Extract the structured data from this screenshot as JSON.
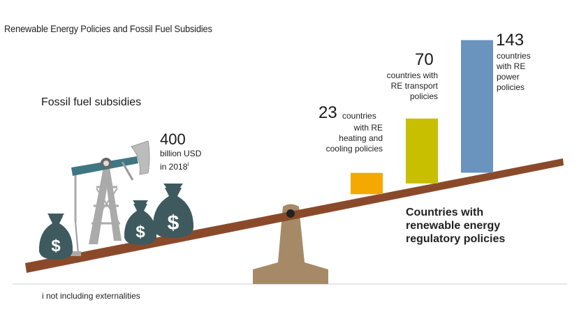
{
  "title": "Renewable Energy Policies and Fossil Fuel Subsidies",
  "fossil": {
    "heading": "Fossil fuel subsidies",
    "value": "400",
    "desc_line1": "billion USD",
    "desc_line2": "in 2018",
    "footnote_mark": "i"
  },
  "re_heading": "Countries with\nrenewable energy\nregulatory policies",
  "footnote": "i  not including externalities",
  "chart_data": {
    "type": "bar",
    "categories": [
      "RE heating and cooling policies",
      "RE transport policies",
      "RE power policies"
    ],
    "values": [
      23,
      70,
      143
    ],
    "colors": [
      "#f5a800",
      "#c7bf00",
      "#6a93be"
    ],
    "unit": "countries"
  },
  "bars": {
    "heating": {
      "value": "23",
      "desc_line1": "countries",
      "desc_rest": "with RE\nheating and\ncooling policies"
    },
    "transport": {
      "value": "70",
      "desc": "countries with\nRE transport\npolicies"
    },
    "power": {
      "value": "143",
      "desc": "countries\nwith RE\npower\npolicies"
    }
  },
  "colors": {
    "seesaw_plank": "#8a4a2a",
    "fulcrum": "#a68a68",
    "money_bag": "#3e5a5e",
    "pump_frame": "#aaaaaa",
    "pump_beam": "#3f7682",
    "pump_head": "#bcbcbc",
    "baseline": "#cccccc"
  }
}
